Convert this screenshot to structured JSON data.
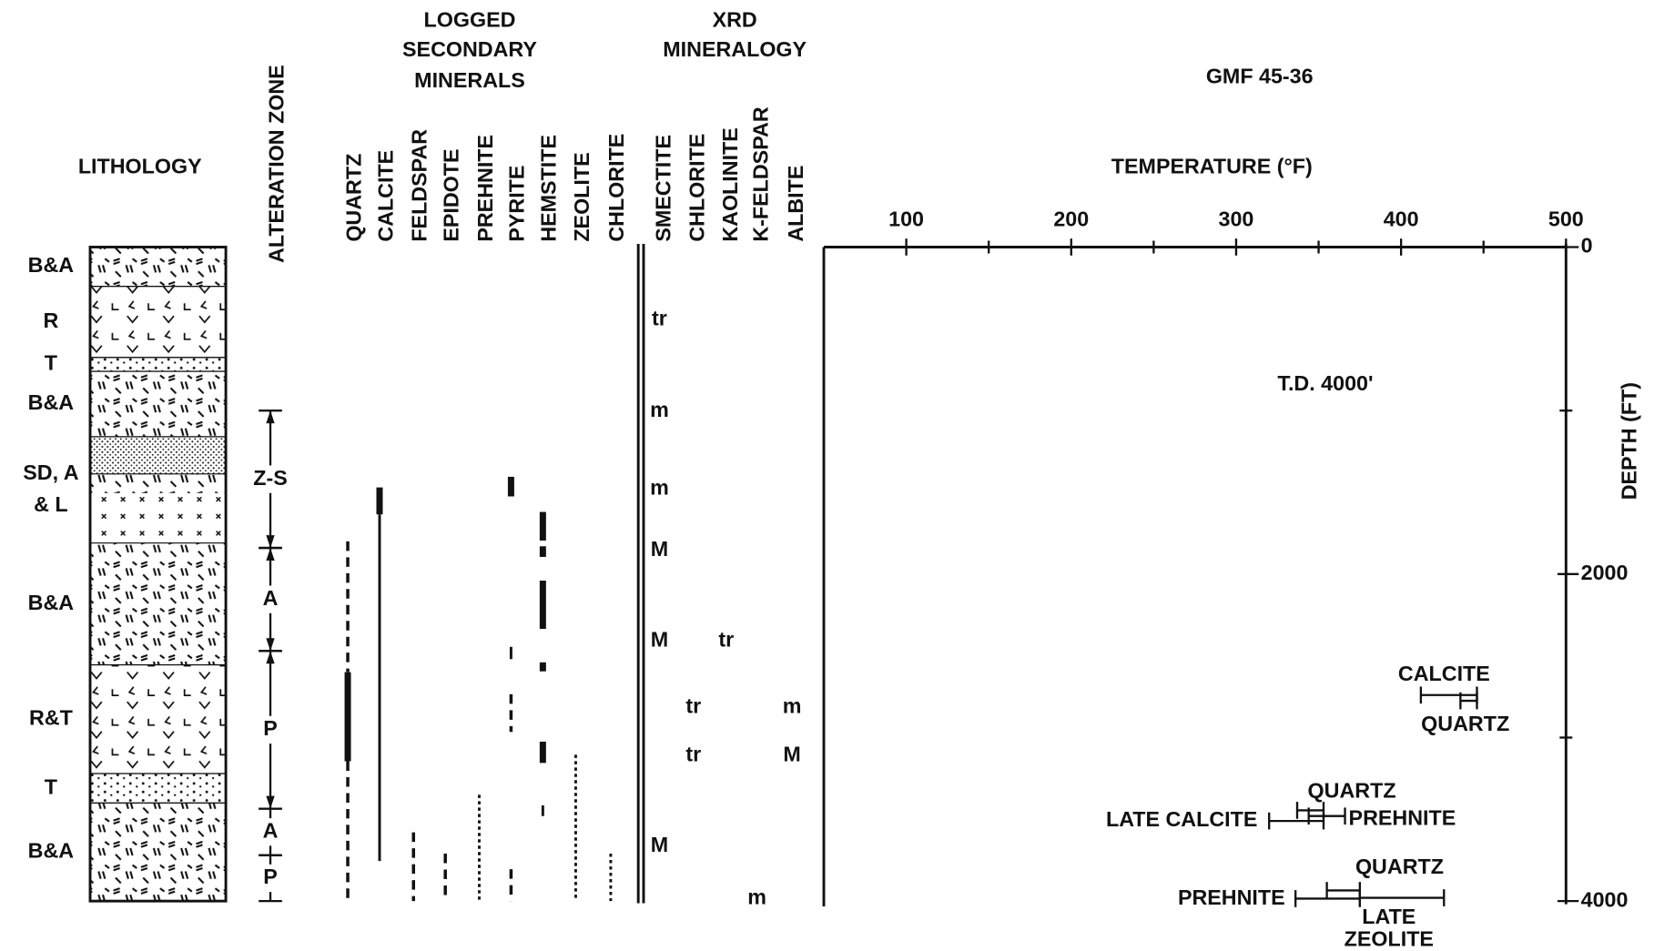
{
  "title": "GMF 45-36",
  "lithology": {
    "heading": "LITHOLOGY",
    "depth_lim": [
      0,
      4000
    ],
    "units": [
      {
        "lines": [
          "B&A"
        ],
        "top": 0,
        "base": 240
      },
      {
        "lines": [
          "R"
        ],
        "top": 240,
        "base": 675
      },
      {
        "lines": [
          "T"
        ],
        "top": 675,
        "base": 760
      },
      {
        "lines": [
          "B&A"
        ],
        "top": 760,
        "base": 1160
      },
      {
        "lines": [
          "SD, A",
          "& L"
        ],
        "top": 1160,
        "base": 1810
      },
      {
        "lines": [
          "B&A"
        ],
        "top": 1810,
        "base": 2555
      },
      {
        "lines": [
          "R&T"
        ],
        "top": 2555,
        "base": 3220
      },
      {
        "lines": [
          "T"
        ],
        "top": 3220,
        "base": 3400
      },
      {
        "lines": [
          "B&A"
        ],
        "top": 3400,
        "base": 4000
      }
    ]
  },
  "alteration": {
    "heading": "ALTERATION ZONE",
    "zones": [
      {
        "label": "Z-S",
        "top": 1000,
        "base": 1840
      },
      {
        "label": "A",
        "top": 1840,
        "base": 2470
      },
      {
        "label": "P",
        "top": 2470,
        "base": 3435
      },
      {
        "label": "A",
        "top": 3435,
        "base": 3720
      },
      {
        "label": "P",
        "top": 3720,
        "base": 4000
      }
    ]
  },
  "logged": {
    "heading": [
      "LOGGED",
      "SECONDARY",
      "MINERALS"
    ],
    "minerals": [
      {
        "name": "QUARTZ",
        "intervals": [
          {
            "top": 1800,
            "base": 2600,
            "style": "dashed"
          },
          {
            "top": 2600,
            "base": 3145,
            "style": "thick"
          },
          {
            "top": 3145,
            "base": 4000,
            "style": "dashed"
          }
        ]
      },
      {
        "name": "CALCITE",
        "intervals": [
          {
            "top": 1470,
            "base": 1635,
            "style": "thick"
          },
          {
            "top": 1635,
            "base": 3755,
            "style": "solid"
          }
        ]
      },
      {
        "name": "FELDSPAR",
        "intervals": [
          {
            "top": 3580,
            "base": 4000,
            "style": "dashed"
          }
        ]
      },
      {
        "name": "EPIDOTE",
        "intervals": [
          {
            "top": 3710,
            "base": 4000,
            "style": "dashed"
          }
        ]
      },
      {
        "name": "PREHNITE",
        "intervals": [
          {
            "top": 3350,
            "base": 4000,
            "style": "dotted"
          }
        ]
      },
      {
        "name": "PYRITE",
        "intervals": [
          {
            "top": 1405,
            "base": 1525,
            "style": "thick"
          },
          {
            "top": 2445,
            "base": 2520,
            "style": "solid"
          },
          {
            "top": 2735,
            "base": 2965,
            "style": "dashed"
          },
          {
            "top": 3805,
            "base": 4000,
            "style": "dashed"
          }
        ]
      },
      {
        "name": "HEMSTITE",
        "intervals": [
          {
            "top": 1620,
            "base": 1795,
            "style": "thick"
          },
          {
            "top": 1830,
            "base": 1895,
            "style": "thick"
          },
          {
            "top": 2040,
            "base": 2335,
            "style": "thick"
          },
          {
            "top": 2540,
            "base": 2595,
            "style": "thick"
          },
          {
            "top": 3025,
            "base": 3155,
            "style": "thick"
          },
          {
            "top": 3415,
            "base": 3480,
            "style": "solid"
          }
        ]
      },
      {
        "name": "ZEOLITE",
        "intervals": [
          {
            "top": 3105,
            "base": 4000,
            "style": "dotted"
          }
        ]
      },
      {
        "name": "CHLORITE",
        "intervals": [
          {
            "top": 3710,
            "base": 4000,
            "style": "dotted"
          }
        ]
      }
    ]
  },
  "xrd": {
    "heading": [
      "XRD",
      "MINERALOGY"
    ],
    "minerals": [
      {
        "name": "SMECTITE",
        "records": [
          {
            "depth": 445,
            "abundance": "tr"
          },
          {
            "depth": 1005,
            "abundance": "m"
          },
          {
            "depth": 1480,
            "abundance": "m"
          },
          {
            "depth": 1855,
            "abundance": "M"
          },
          {
            "depth": 2410,
            "abundance": "M"
          },
          {
            "depth": 3665,
            "abundance": "M"
          }
        ]
      },
      {
        "name": "CHLORITE",
        "records": [
          {
            "depth": 2815,
            "abundance": "tr"
          },
          {
            "depth": 3110,
            "abundance": "tr"
          }
        ]
      },
      {
        "name": "KAOLINITE",
        "records": [
          {
            "depth": 2410,
            "abundance": "tr"
          }
        ]
      },
      {
        "name": "K-FELDSPAR",
        "records": [
          {
            "depth": 3985,
            "abundance": "m"
          }
        ]
      },
      {
        "name": "ALBITE",
        "records": [
          {
            "depth": 2815,
            "abundance": "m"
          },
          {
            "depth": 3110,
            "abundance": "M"
          }
        ]
      }
    ]
  },
  "temperature": {
    "heading": "TEMPERATURE (°F)",
    "lim": [
      50,
      500
    ],
    "ticks": [
      100,
      200,
      300,
      400,
      500
    ],
    "minor_ticks": [
      150,
      250,
      350,
      450
    ]
  },
  "depth_axis": {
    "heading": "DEPTH (FT)",
    "lim": [
      0,
      4000
    ],
    "ticks": [
      0,
      2000,
      4000
    ],
    "minor_ticks": [
      1000,
      3000
    ]
  },
  "total_depth": "T.D. 4000'",
  "inclusions": [
    {
      "lines": [
        "CALCITE"
      ],
      "depth": 2740,
      "tmin": 412,
      "tmax": 446
    },
    {
      "lines": [
        "QUARTZ"
      ],
      "depth": 2775,
      "tmin": 436,
      "tmax": 446
    },
    {
      "lines": [
        "LATE CALCITE"
      ],
      "depth": 3510,
      "tmin": 320,
      "tmax": 353
    },
    {
      "lines": [
        "QUARTZ"
      ],
      "depth": 3445,
      "tmin": 337,
      "tmax": 353
    },
    {
      "lines": [
        "PREHNITE"
      ],
      "depth": 3480,
      "tmin": 344,
      "tmax": 366
    },
    {
      "lines": [
        "PREHNITE"
      ],
      "depth": 3985,
      "tmin": 336,
      "tmax": 375
    },
    {
      "lines": [
        "QUARTZ"
      ],
      "depth": 3935,
      "tmin": 355,
      "tmax": 375
    },
    {
      "lines": [
        "LATE",
        "ZEOLITE"
      ],
      "depth": 3980,
      "tmin": 375,
      "tmax": 426
    }
  ]
}
